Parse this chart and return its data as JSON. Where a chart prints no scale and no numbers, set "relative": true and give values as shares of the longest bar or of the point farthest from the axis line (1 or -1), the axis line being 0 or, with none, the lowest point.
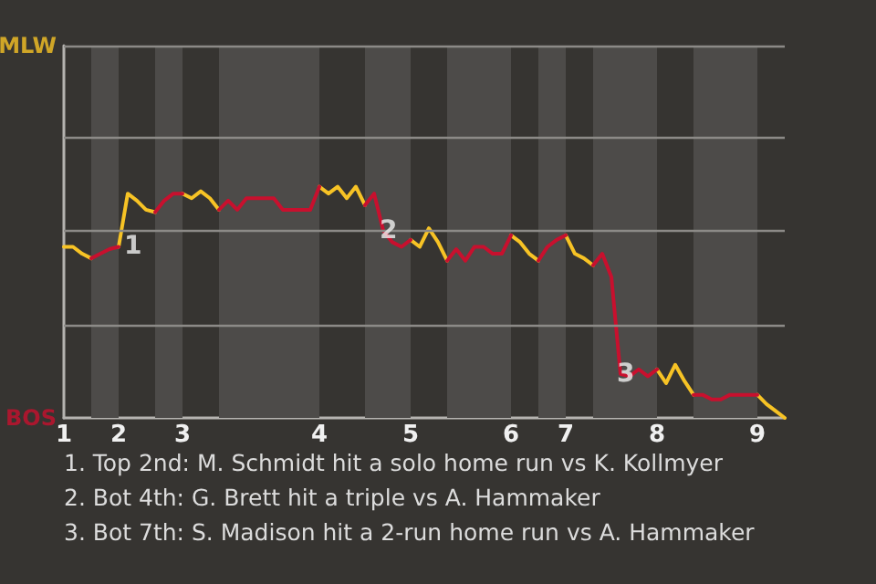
{
  "chart_data": {
    "type": "line",
    "relative": true,
    "categories": [
      "1",
      null,
      null,
      null,
      null,
      null,
      "2",
      null,
      null,
      null,
      null,
      null,
      null,
      "3",
      null,
      null,
      null,
      null,
      null,
      null,
      null,
      null,
      null,
      null,
      null,
      null,
      null,
      null,
      "4",
      null,
      null,
      null,
      null,
      null,
      null,
      null,
      null,
      null,
      "5",
      null,
      null,
      null,
      null,
      null,
      null,
      null,
      null,
      null,
      null,
      "6",
      null,
      null,
      null,
      null,
      null,
      "7",
      null,
      null,
      null,
      null,
      null,
      null,
      null,
      null,
      null,
      "8",
      null,
      null,
      null,
      null,
      null,
      null,
      null,
      null,
      null,
      null,
      "9",
      null,
      null,
      null
    ],
    "marker": "none",
    "line_style": "solid",
    "ref_lines": [
      {
        "axis": "y",
        "value": 0.4,
        "color": "#8c8a87"
      },
      {
        "axis": "y",
        "value": 0.81,
        "color": "#8c8a87"
      },
      {
        "axis": "y",
        "value": 1.21,
        "color": "#8c8a87"
      },
      {
        "axis": "y",
        "value": 1.61,
        "color": "#8c8a87"
      }
    ],
    "series": [
      {
        "color": "#f7c325",
        "values": [
          0.74,
          0.74,
          0.71,
          0.69,
          null,
          null,
          0.74,
          0.97,
          0.94,
          0.9,
          0.89,
          null,
          null,
          0.97,
          0.95,
          0.98,
          0.95,
          0.9,
          null,
          null,
          null,
          null,
          null,
          null,
          null,
          null,
          null,
          null,
          1,
          0.97,
          1,
          0.95,
          1,
          0.92,
          null,
          null,
          null,
          null,
          0.77,
          0.74,
          0.82,
          0.76,
          0.68,
          null,
          null,
          null,
          null,
          null,
          null,
          0.79,
          0.76,
          0.71,
          0.68,
          null,
          null,
          0.79,
          0.71,
          0.69,
          0.66,
          null,
          null,
          null,
          null,
          null,
          null,
          0.21,
          0.15,
          0.23,
          0.16,
          0.1,
          null,
          null,
          null,
          null,
          null,
          null,
          0.1,
          0.06,
          0.03,
          0
        ]
      },
      {
        "color": "#c8102e",
        "values": [
          null,
          null,
          null,
          0.69,
          0.71,
          0.73,
          0.74,
          null,
          null,
          null,
          0.89,
          0.94,
          0.97,
          0.97,
          null,
          null,
          null,
          0.9,
          0.94,
          0.9,
          0.95,
          0.95,
          0.95,
          0.95,
          0.9,
          0.9,
          0.9,
          0.9,
          1,
          null,
          null,
          null,
          null,
          0.92,
          0.97,
          0.81,
          0.76,
          0.74,
          0.77,
          null,
          null,
          null,
          0.68,
          0.73,
          0.68,
          0.74,
          0.74,
          0.71,
          0.71,
          0.79,
          null,
          null,
          0.68,
          0.74,
          0.77,
          0.79,
          null,
          null,
          0.66,
          0.71,
          0.61,
          0.19,
          0.18,
          0.21,
          0.18,
          0.21,
          null,
          null,
          null,
          0.1,
          0.1,
          0.08,
          0.08,
          0.1,
          0.1,
          0.1,
          0.1,
          null,
          null,
          null
        ]
      }
    ],
    "annotations": [
      "MLW",
      "BOS",
      "1",
      "2",
      "3",
      "1. Top 2nd: M. Schmidt hit a solo home run vs K. Kollmyer",
      "2. Bot 4th: G. Brett hit a triple vs A. Hammaker",
      "3. Bot 7th: S. Madison hit a 2-run home run vs A. Hammaker"
    ]
  }
}
